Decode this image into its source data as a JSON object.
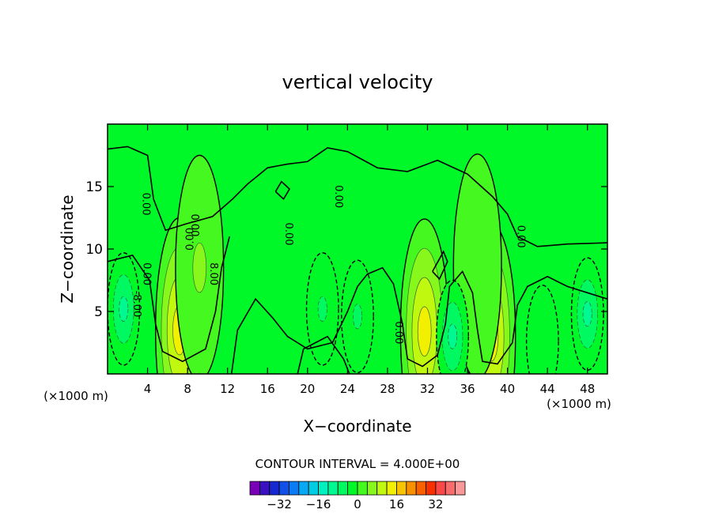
{
  "chart_data": {
    "type": "heatmap",
    "title": "vertical velocity",
    "xlabel": "X−coordinate",
    "ylabel": "Z−coordinate",
    "x_unit_left": "(×1000 m)",
    "x_unit_right": "(×1000 m)",
    "xlim": [
      0,
      50
    ],
    "ylim": [
      0,
      20
    ],
    "x_ticks": [
      4,
      8,
      12,
      16,
      20,
      24,
      28,
      32,
      36,
      40,
      44,
      48
    ],
    "x_tick_labels": [
      "4",
      "8",
      "12",
      "16",
      "20",
      "24",
      "28",
      "32",
      "36",
      "40",
      "44",
      "48"
    ],
    "y_ticks": [
      5,
      10,
      15
    ],
    "y_tick_labels": [
      "5",
      "10",
      "15"
    ],
    "background_value": 0,
    "contour_interval_label": "CONTOUR INTERVAL = 4.000E+00",
    "contour_line_labels": [
      "0.00",
      "0.00",
      "0.00",
      "0.00",
      "0.00",
      "0.00",
      "0.00",
      "0.00",
      "-8.00",
      "8.00"
    ],
    "features": [
      {
        "name": "updraft",
        "x": 7.2,
        "z": 3.5,
        "peak": 16
      },
      {
        "name": "updraft",
        "x": 9.2,
        "z": 8.5,
        "peak": 8
      },
      {
        "name": "updraft",
        "x": 31.7,
        "z": 3.4,
        "peak": 16
      },
      {
        "name": "updraft",
        "x": 38.4,
        "z": 3.0,
        "peak": 16
      },
      {
        "name": "updraft",
        "x": 37.0,
        "z": 8.6,
        "peak": 4
      },
      {
        "name": "downdraft",
        "x": 1.6,
        "z": 5.2,
        "peak": -12
      },
      {
        "name": "downdraft",
        "x": 21.5,
        "z": 5.2,
        "peak": -8
      },
      {
        "name": "downdraft",
        "x": 25.0,
        "z": 4.6,
        "peak": -8
      },
      {
        "name": "downdraft",
        "x": 34.5,
        "z": 3.0,
        "peak": -12
      },
      {
        "name": "downdraft",
        "x": 48.0,
        "z": 4.8,
        "peak": -12
      },
      {
        "name": "downdraft",
        "x": 43.5,
        "z": 2.6,
        "peak": -4
      }
    ],
    "colorbar": {
      "colors": [
        "#7a00b8",
        "#3a10c0",
        "#1828d0",
        "#1050e8",
        "#0c7cf4",
        "#08a8f4",
        "#00cce4",
        "#00f0c0",
        "#00f890",
        "#00f860",
        "#00f828",
        "#44f820",
        "#88f81c",
        "#c0f810",
        "#f0f000",
        "#f8c400",
        "#f89000",
        "#f86000",
        "#f83000",
        "#f84848",
        "#f86c6c",
        "#f89898"
      ],
      "tick_values": [
        -32,
        -16,
        0,
        16,
        32
      ],
      "tick_labels": [
        "−32",
        "−16",
        "0",
        "16",
        "32"
      ],
      "min": -44,
      "max": 44
    }
  }
}
